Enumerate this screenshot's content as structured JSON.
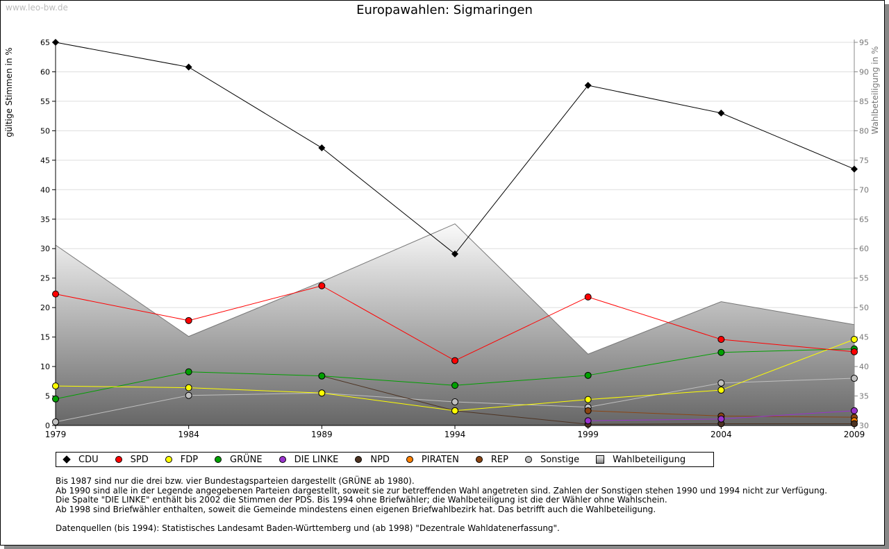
{
  "watermark": "www.leo-bw.de",
  "chart_data": {
    "type": "line",
    "title": "Europawahlen: Sigmaringen",
    "ylabel": "gültige Stimmen in %",
    "y2label": "Wahlbeteiligung in %",
    "x": [
      1979,
      1984,
      1989,
      1994,
      1999,
      2004,
      2009
    ],
    "ylim": [
      0,
      65
    ],
    "y2lim": [
      30,
      95
    ],
    "yticks": [
      0,
      5,
      10,
      15,
      20,
      25,
      30,
      35,
      40,
      45,
      50,
      55,
      60,
      65
    ],
    "y2ticks": [
      30,
      35,
      40,
      45,
      50,
      55,
      60,
      65,
      70,
      75,
      80,
      85,
      90,
      95
    ],
    "grid": true,
    "series": [
      {
        "name": "CDU",
        "color": "#000000",
        "values": [
          65.0,
          60.8,
          47.1,
          29.1,
          57.7,
          53.0,
          43.5
        ]
      },
      {
        "name": "SPD",
        "color": "#ff0000",
        "values": [
          22.3,
          17.8,
          23.7,
          11.0,
          21.8,
          14.6,
          12.5
        ]
      },
      {
        "name": "FDP",
        "color": "#ffff00",
        "values": [
          6.7,
          6.4,
          5.5,
          2.5,
          4.4,
          6.0,
          14.6
        ]
      },
      {
        "name": "GRÜNE",
        "color": "#00a000",
        "values": [
          4.5,
          9.1,
          8.4,
          6.8,
          8.5,
          12.4,
          13.0
        ]
      },
      {
        "name": "DIE LINKE",
        "color": "#9933cc",
        "values": [
          null,
          null,
          null,
          null,
          0.8,
          1.1,
          2.5
        ]
      },
      {
        "name": "NPD",
        "color": "#4d3322",
        "values": [
          null,
          null,
          8.4,
          2.5,
          0.2,
          0.3,
          0.3
        ]
      },
      {
        "name": "PIRATEN",
        "color": "#ff8000",
        "values": [
          null,
          null,
          null,
          null,
          null,
          null,
          0.8
        ]
      },
      {
        "name": "REP",
        "color": "#8b4513",
        "values": [
          null,
          null,
          null,
          null,
          2.5,
          1.6,
          1.4
        ]
      },
      {
        "name": "Sonstige",
        "color": "#c0c0c0",
        "values": [
          0.6,
          5.1,
          5.5,
          4.0,
          3.1,
          7.2,
          8.0
        ]
      }
    ],
    "turnout": {
      "name": "Wahlbeteiligung",
      "axis": "right",
      "values": [
        60.6,
        45.1,
        54.4,
        64.2,
        42.1,
        51.0,
        47.1
      ]
    },
    "legend_position": "bottom"
  },
  "notes": [
    "Bis 1987 sind nur die drei bzw. vier Bundestagsparteien dargestellt (GRÜNE ab 1980).",
    "Ab 1990 sind alle in der Legende angegebenen Parteien dargestellt, soweit sie zur betreffenden Wahl angetreten sind. Zahlen der Sonstigen stehen 1990 und 1994 nicht zur Verfügung.",
    "Die Spalte \"DIE LINKE\" enthält bis 2002 die Stimmen der PDS. Bis 1994 ohne Briefwähler; die Wahlbeteiligung ist die der Wähler ohne Wahlschein.",
    "Ab 1998 sind Briefwähler enthalten, soweit die Gemeinde mindestens einen eigenen Briefwahlbezirk hat. Das betrifft auch die Wahlbeteiligung.",
    "",
    "Datenquellen (bis 1994): Statistisches Landesamt Baden-Württemberg und (ab 1998) \"Dezentrale Wahldatenerfassung\"."
  ]
}
